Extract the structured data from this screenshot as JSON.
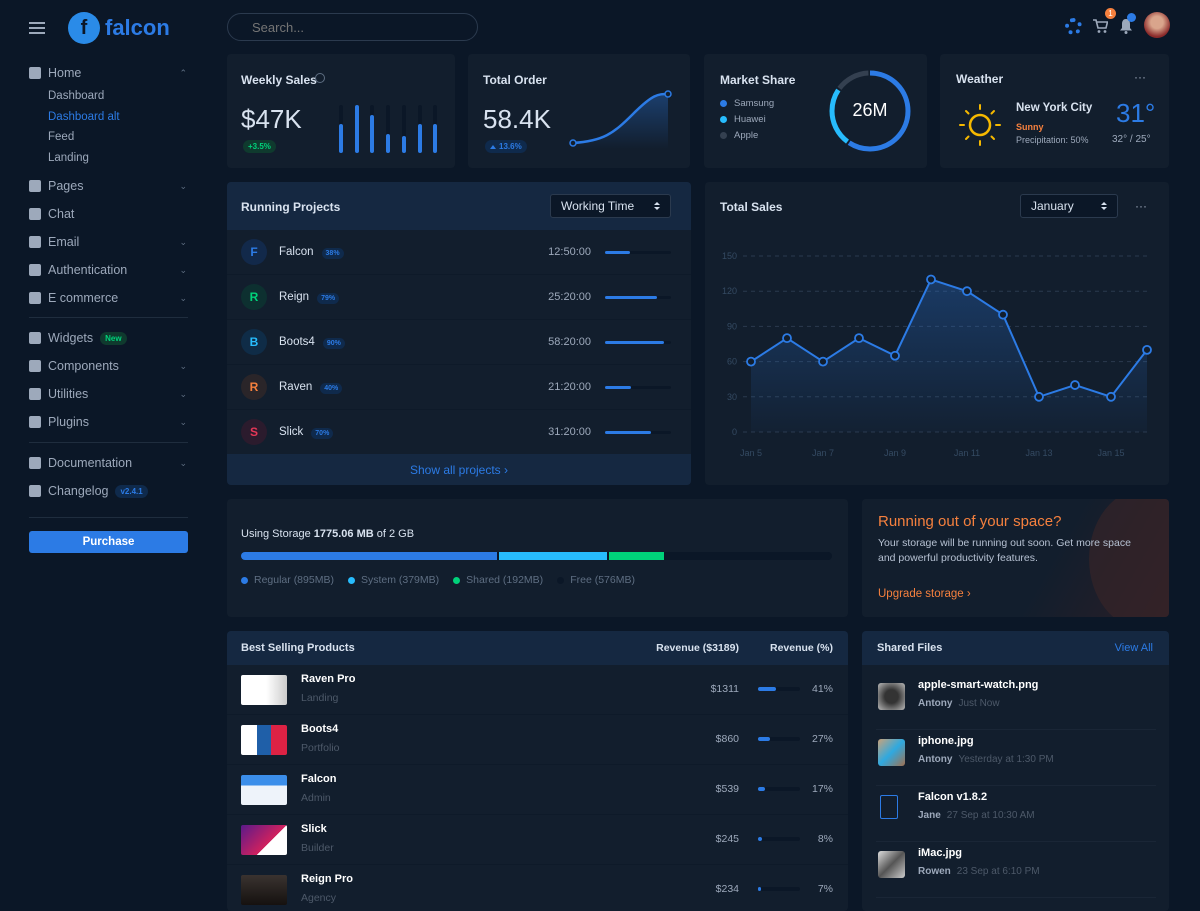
{
  "colors": {
    "bg": "#0b1727",
    "card": "#121e2d",
    "primary": "#2c7be5",
    "info": "#27bcfd",
    "success": "#00d27a",
    "warning": "#f5803e",
    "danger": "#e63757"
  },
  "brand": {
    "name": "falcon"
  },
  "search": {
    "placeholder": "Search..."
  },
  "topbar": {
    "icons": [
      "gear-icon",
      "cart-icon",
      "bell-icon",
      "avatar"
    ],
    "cart_count": "1"
  },
  "sidebar": {
    "home": {
      "label": "Home",
      "sub": [
        "Dashboard",
        "Dashboard alt",
        "Feed",
        "Landing"
      ],
      "active": "Dashboard alt"
    },
    "items1": [
      {
        "label": "Pages",
        "icon": "pages-icon",
        "chev": true
      },
      {
        "label": "Chat",
        "icon": "chat-icon",
        "chev": false
      },
      {
        "label": "Email",
        "icon": "email-icon",
        "chev": true
      },
      {
        "label": "Authentication",
        "icon": "lock-icon",
        "chev": true
      },
      {
        "label": "E commerce",
        "icon": "cart-icon",
        "chev": true
      }
    ],
    "items2": [
      {
        "label": "Widgets",
        "icon": "widgets-icon",
        "badge": "New"
      },
      {
        "label": "Components",
        "icon": "puzzle-icon",
        "chev": true
      },
      {
        "label": "Utilities",
        "icon": "fire-icon",
        "chev": true
      },
      {
        "label": "Plugins",
        "icon": "plug-icon",
        "chev": true
      }
    ],
    "items3": [
      {
        "label": "Documentation",
        "icon": "book-icon",
        "chev": true
      },
      {
        "label": "Changelog",
        "icon": "branch-icon",
        "badge": "v2.4.1"
      }
    ],
    "purchase": "Purchase"
  },
  "weekly_sales": {
    "title": "Weekly Sales",
    "value": "$47K",
    "change": "+3.5%",
    "bars": [
      60,
      100,
      80,
      40,
      35,
      60,
      60
    ]
  },
  "total_order": {
    "title": "Total Order",
    "value": "58.4K",
    "change": "13.6%"
  },
  "market_share": {
    "title": "Market Share",
    "total": "26M",
    "items": [
      {
        "name": "Samsung",
        "color": "#2c7be5",
        "share": 60
      },
      {
        "name": "Huawei",
        "color": "#27bcfd",
        "share": 25
      },
      {
        "name": "Apple",
        "color": "#344050",
        "share": 15
      }
    ]
  },
  "weather": {
    "title": "Weather",
    "city": "New York City",
    "condition": "Sunny",
    "precipitation": "Precipitation: 50%",
    "temp": "31°",
    "range": "32° / 25°"
  },
  "running_projects": {
    "title": "Running Projects",
    "select": "Working Time",
    "footer": "Show all projects ›",
    "projects": [
      {
        "initial": "F",
        "name": "Falcon",
        "pct": "38%",
        "progress": 38,
        "time": "12:50:00",
        "color": "#2c7be5",
        "bg": "#12294a"
      },
      {
        "initial": "R",
        "name": "Reign",
        "pct": "79%",
        "progress": 79,
        "time": "25:20:00",
        "color": "#00d27a",
        "bg": "#0d3030"
      },
      {
        "initial": "B",
        "name": "Boots4",
        "pct": "90%",
        "progress": 90,
        "time": "58:20:00",
        "color": "#27bcfd",
        "bg": "#0f2c47"
      },
      {
        "initial": "R",
        "name": "Raven",
        "pct": "40%",
        "progress": 40,
        "time": "21:20:00",
        "color": "#f5803e",
        "bg": "#2a2529"
      },
      {
        "initial": "S",
        "name": "Slick",
        "pct": "70%",
        "progress": 70,
        "time": "31:20:00",
        "color": "#e63757",
        "bg": "#2b1b2d"
      }
    ]
  },
  "chart_data": {
    "type": "line",
    "title": "Total Sales",
    "select": "January",
    "x": [
      "Jan 5",
      "Jan 6",
      "Jan 7",
      "Jan 8",
      "Jan 9",
      "Jan 10",
      "Jan 11",
      "Jan 12",
      "Jan 13",
      "Jan 14",
      "Jan 15",
      "Jan 16"
    ],
    "values": [
      60,
      80,
      60,
      80,
      65,
      130,
      120,
      100,
      30,
      40,
      30,
      70
    ],
    "xticks": [
      "Jan 5",
      "Jan 7",
      "Jan 9",
      "Jan 11",
      "Jan 13",
      "Jan 15"
    ],
    "yticks": [
      0,
      30,
      60,
      90,
      120,
      150
    ],
    "ylim": [
      0,
      150
    ],
    "grid": true,
    "area": true
  },
  "storage": {
    "prefix": "Using Storage ",
    "used": "1775.06 MB",
    "suffix": " of 2 GB",
    "segments": [
      {
        "label": "Regular (895MB)",
        "mb": 895,
        "color": "#2c7be5"
      },
      {
        "label": "System (379MB)",
        "mb": 379,
        "color": "#27bcfd"
      },
      {
        "label": "Shared (192MB)",
        "mb": 192,
        "color": "#00d27a"
      },
      {
        "label": "Free (576MB)",
        "mb": 576,
        "color": "#0b1727"
      }
    ]
  },
  "promo": {
    "title": "Running out of your space?",
    "text": "Your storage will be running out soon. Get more space and powerful productivity features.",
    "link": "Upgrade storage ›"
  },
  "best_selling": {
    "title": "Best Selling Products",
    "col1": "Revenue ($3189)",
    "col2": "Revenue (%)",
    "rows": [
      {
        "name": "Raven Pro",
        "type": "Landing",
        "revenue": "$1311",
        "pct": "41%",
        "p": 41
      },
      {
        "name": "Boots4",
        "type": "Portfolio",
        "revenue": "$860",
        "pct": "27%",
        "p": 27
      },
      {
        "name": "Falcon",
        "type": "Admin",
        "revenue": "$539",
        "pct": "17%",
        "p": 17
      },
      {
        "name": "Slick",
        "type": "Builder",
        "revenue": "$245",
        "pct": "8%",
        "p": 8
      },
      {
        "name": "Reign Pro",
        "type": "Agency",
        "revenue": "$234",
        "pct": "7%",
        "p": 7
      }
    ]
  },
  "shared_files": {
    "title": "Shared Files",
    "view_all": "View All",
    "files": [
      {
        "name": "apple-smart-watch.png",
        "user": "Antony",
        "time": "Just Now",
        "kind": "image"
      },
      {
        "name": "iphone.jpg",
        "user": "Antony",
        "time": "Yesterday at 1:30 PM",
        "kind": "image"
      },
      {
        "name": "Falcon v1.8.2",
        "user": "Jane",
        "time": "27 Sep at 10:30 AM",
        "kind": "zip"
      },
      {
        "name": "iMac.jpg",
        "user": "Rowen",
        "time": "23 Sep at 6:10 PM",
        "kind": "image"
      }
    ]
  }
}
